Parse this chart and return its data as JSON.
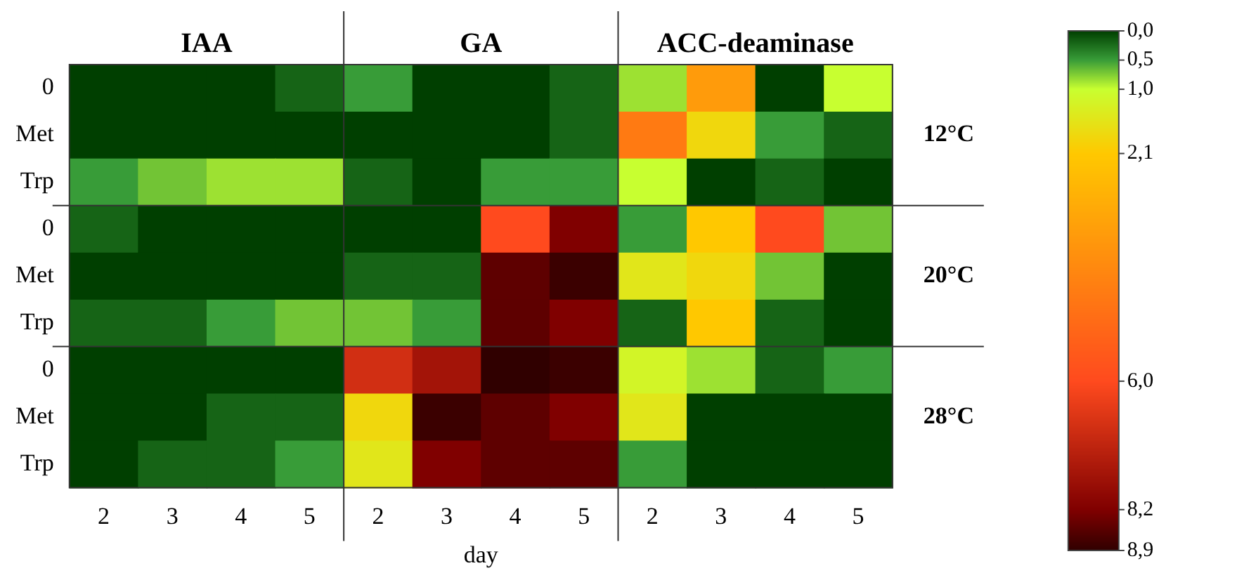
{
  "chart_data": {
    "type": "heatmap",
    "xlabel": "day",
    "annotations": [
      "IAA",
      "GA",
      "ACC-deaminase"
    ],
    "categories": [
      "2",
      "3",
      "4",
      "5",
      "2",
      "3",
      "4",
      "5",
      "2",
      "3",
      "4",
      "5"
    ],
    "y_categories": [
      "0",
      "Met",
      "Trp",
      "0",
      "Met",
      "Trp",
      "0",
      "Met",
      "Trp"
    ],
    "y2_categories": [
      null,
      "12°C",
      null,
      null,
      "20°C",
      null,
      null,
      "28°C",
      null
    ],
    "cells": [
      [
        0,
        0,
        0,
        0.2,
        0.5,
        0,
        0,
        0.2,
        0.85,
        3.5,
        0,
        1.0
      ],
      [
        0,
        0,
        0,
        0,
        0,
        0,
        0,
        0.2,
        4.5,
        1.8,
        0.5,
        0.2
      ],
      [
        0.5,
        0.7,
        0.85,
        0.85,
        0.2,
        0,
        0.5,
        0.5,
        1.0,
        0,
        0.2,
        0
      ],
      [
        0.2,
        0,
        0,
        0,
        0,
        0,
        6.0,
        8.2,
        0.5,
        2.1,
        6.0,
        0.7
      ],
      [
        0,
        0,
        0,
        0,
        0.2,
        0.2,
        8.5,
        8.8,
        1.5,
        1.8,
        0.7,
        0
      ],
      [
        0.2,
        0.2,
        0.5,
        0.7,
        0.7,
        0.5,
        8.5,
        8.2,
        0.2,
        2.1,
        0.2,
        0
      ],
      [
        0,
        0,
        0,
        0,
        6.8,
        7.6,
        8.9,
        8.8,
        1.2,
        0.85,
        0.2,
        0.5
      ],
      [
        0,
        0,
        0.2,
        0.2,
        1.8,
        8.8,
        8.5,
        8.2,
        1.5,
        0,
        0,
        0
      ],
      [
        0,
        0.2,
        0.2,
        0.5,
        1.5,
        8.2,
        8.5,
        8.5,
        0.5,
        0,
        0,
        0
      ]
    ],
    "clim": [
      0,
      8.9
    ],
    "cticks": [
      {
        "value": 0,
        "label": "0,0"
      },
      {
        "value": 0.5,
        "label": "0,5"
      },
      {
        "value": 1.0,
        "label": "1,0"
      },
      {
        "value": 2.1,
        "label": "2,1"
      },
      {
        "value": 6.0,
        "label": "6,0"
      },
      {
        "value": 8.2,
        "label": "8,2"
      },
      {
        "value": 8.9,
        "label": "8,9"
      }
    ]
  }
}
